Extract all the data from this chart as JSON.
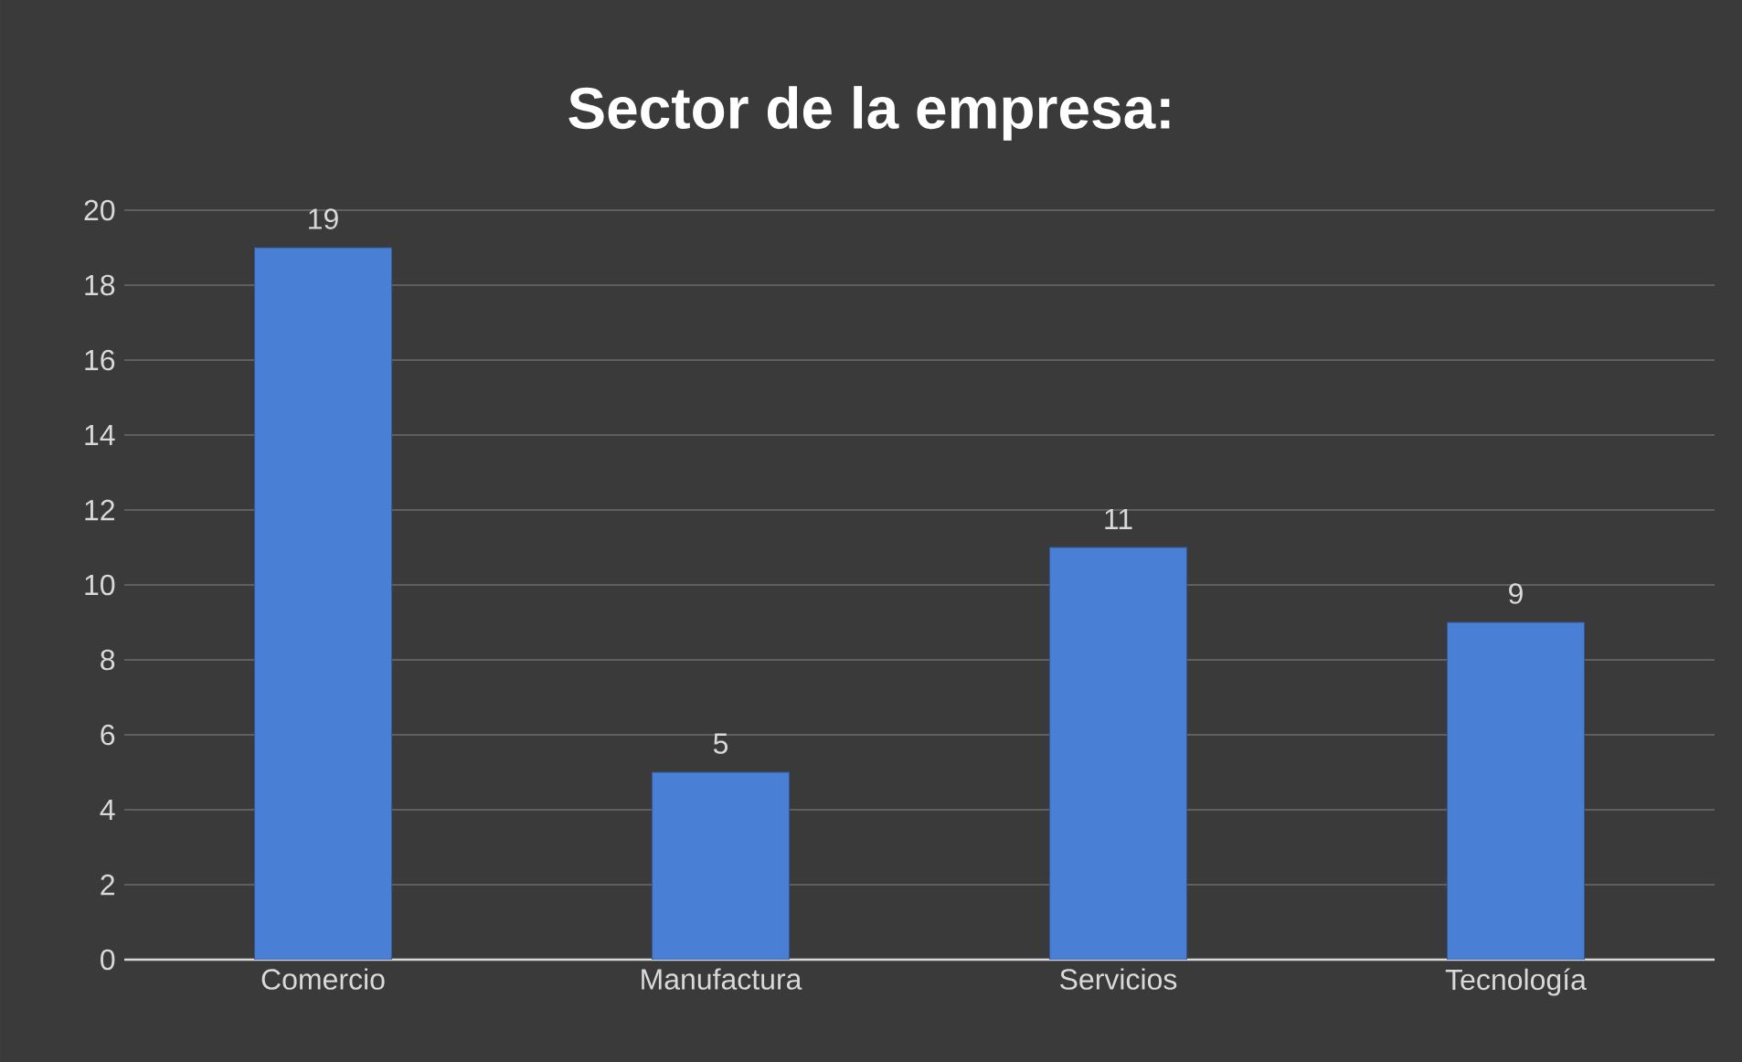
{
  "chart_data": {
    "type": "bar",
    "title": "Sector de la empresa:",
    "categories": [
      "Comercio",
      "Manufactura",
      "Servicios",
      "Tecnología"
    ],
    "values": [
      19,
      5,
      11,
      9
    ],
    "color": "#4a7fd6",
    "ylim": [
      0,
      20
    ],
    "yticks": [
      0,
      2,
      4,
      6,
      8,
      10,
      12,
      14,
      16,
      18,
      20
    ],
    "grid": "y",
    "data_labels": true
  }
}
